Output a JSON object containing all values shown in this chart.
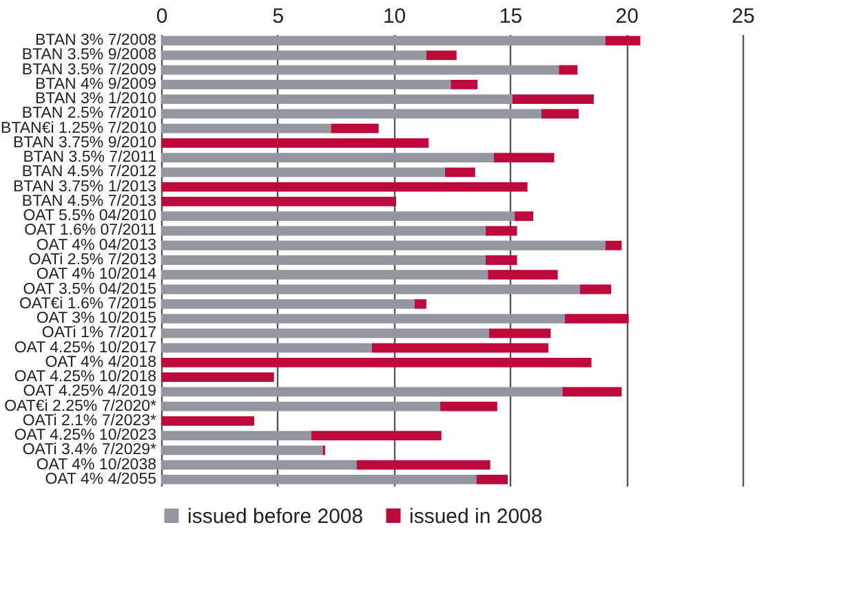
{
  "chart_data": {
    "type": "bar",
    "orientation": "horizontal",
    "stacked": true,
    "categories": [
      "BTAN 3% 7/2008",
      "BTAN 3.5% 9/2008",
      "BTAN 3.5% 7/2009",
      "BTAN 4% 9/2009",
      "BTAN 3% 1/2010",
      "BTAN 2.5% 7/2010",
      "BTAN€i 1.25% 7/2010",
      "BTAN 3.75% 9/2010",
      "BTAN 3.5% 7/2011",
      "BTAN 4.5% 7/2012",
      "BTAN 3.75% 1/2013",
      "BTAN 4.5% 7/2013",
      "OAT 5.5% 04/2010",
      "OAT 1.6% 07/2011",
      "OAT 4% 04/2013",
      "OATi 2.5% 7/2013",
      "OAT 4% 10/2014",
      "OAT 3.5% 04/2015",
      "OAT€i 1.6% 7/2015",
      "OAT 3% 10/2015",
      "OATi 1% 7/2017",
      "OAT 4.25% 10/2017",
      "OAT 4% 4/2018",
      "OAT 4.25% 10/2018",
      "OAT 4.25% 4/2019",
      "OAT€i 2.25% 7/2020*",
      "OATi 2.1% 7/2023*",
      "OAT 4.25% 10/2023",
      "OATi 3.4% 7/2029*",
      "OAT 4% 10/2038",
      "OAT 4% 4/2055"
    ],
    "series": [
      {
        "name": "issued before 2008",
        "color": "#9496a0",
        "values": [
          19.1,
          11.4,
          17.1,
          12.45,
          15.1,
          16.35,
          7.3,
          0,
          14.3,
          12.2,
          0,
          0,
          15.2,
          13.95,
          19.1,
          13.95,
          14.05,
          18.0,
          10.9,
          17.35,
          14.1,
          9.05,
          0,
          0,
          17.25,
          12.0,
          0,
          6.45,
          6.95,
          8.4,
          13.55
        ]
      },
      {
        "name": "issued in 2008",
        "color": "#bd0a3c",
        "values": [
          1.5,
          1.3,
          0.8,
          1.15,
          3.5,
          1.6,
          2.05,
          11.5,
          2.6,
          1.3,
          15.75,
          10.1,
          0.8,
          1.35,
          0.7,
          1.35,
          3.0,
          1.35,
          0.5,
          2.75,
          2.65,
          7.6,
          18.5,
          4.85,
          2.55,
          2.45,
          4.0,
          5.6,
          0.1,
          5.75,
          1.35
        ]
      }
    ],
    "xlim": [
      0,
      25
    ],
    "xticks": [
      0,
      5,
      10,
      15,
      20,
      25
    ],
    "grid": "x",
    "legend": "bottom"
  }
}
